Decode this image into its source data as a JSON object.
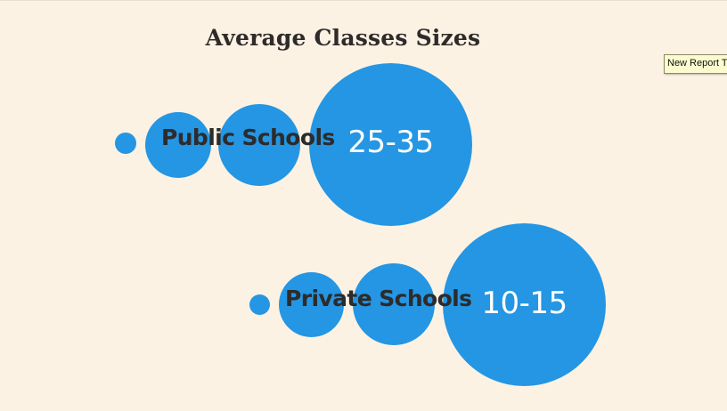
{
  "title": "Average Classes Sizes",
  "tooltip": "New Report T",
  "rows": [
    {
      "label": "Public Schools",
      "range": "25-35"
    },
    {
      "label": "Private Schools",
      "range": "10-15"
    }
  ],
  "colors": {
    "background": "#fcf2e4",
    "bubble": "#2496e3",
    "text": "#2d2b2b",
    "range_text": "#ffffff"
  }
}
